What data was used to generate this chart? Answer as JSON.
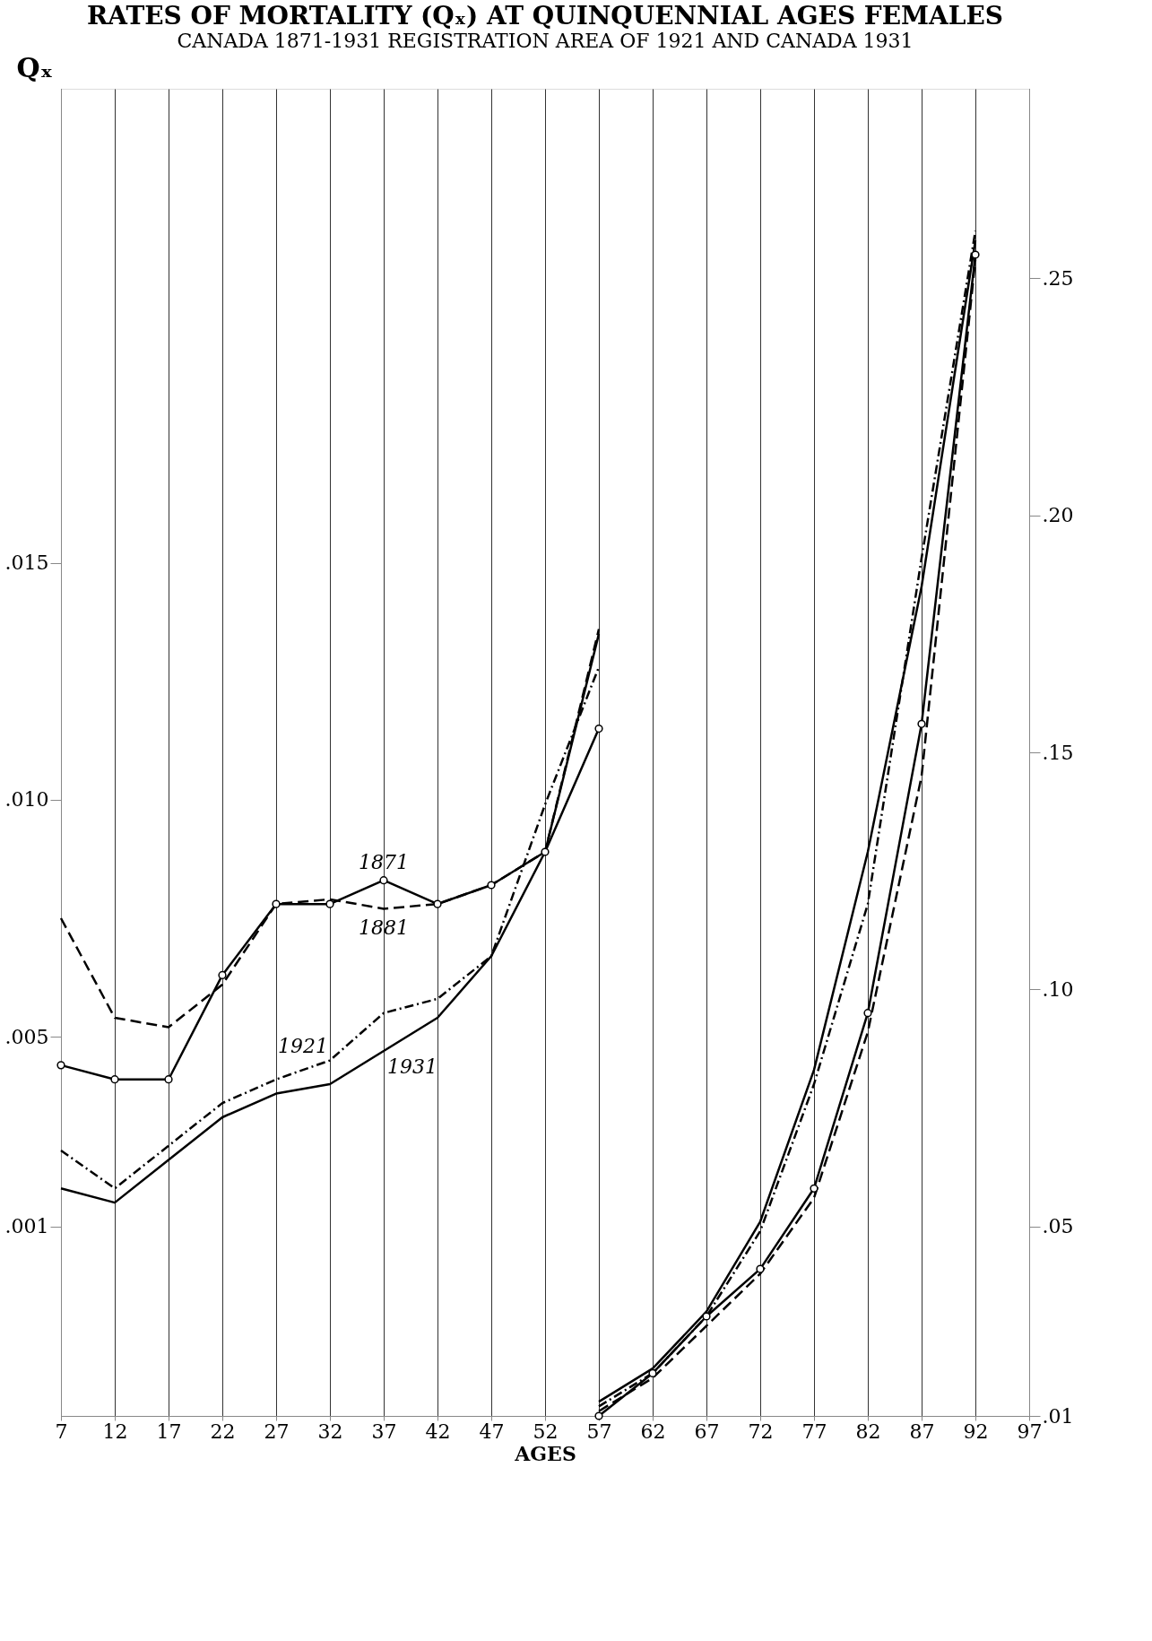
{
  "chart_data": {
    "type": "line",
    "title": "RATES OF MORTALITY (Qₓ) AT QUINQUENNIAL AGES FEMALES",
    "subtitle": "CANADA 1871-1931 REGISTRATION AREA OF 1921 AND CANADA 1931",
    "xlabel": "AGES",
    "ylabel": "Qₓ",
    "xlim": [
      7,
      97
    ],
    "xticks": [
      7,
      12,
      17,
      22,
      27,
      32,
      37,
      42,
      47,
      52,
      57,
      62,
      67,
      72,
      77,
      82,
      87,
      92,
      97
    ],
    "ylim": [
      -0.003,
      0.025
    ],
    "yticks": [
      {
        "value": 0.001,
        "label": ".001"
      },
      {
        "value": 0.005,
        "label": ".005"
      },
      {
        "value": 0.01,
        "label": ".010"
      },
      {
        "value": 0.015,
        "label": ".015"
      }
    ],
    "y2lim": [
      0.01,
      0.29
    ],
    "y2ticks": [
      {
        "value": 0.01,
        "label": ".01"
      },
      {
        "value": 0.05,
        "label": ".05"
      },
      {
        "value": 0.1,
        "label": ".10"
      },
      {
        "value": 0.15,
        "label": ".15"
      },
      {
        "value": 0.2,
        "label": ".20"
      },
      {
        "value": 0.25,
        "label": ".25"
      }
    ],
    "grid": "x",
    "series": [
      {
        "color": "#000000",
        "line_style": "solid",
        "marker": "circle",
        "x": [
          7,
          12,
          17,
          22,
          27,
          32,
          37,
          42,
          47,
          52,
          57
        ],
        "values": [
          0.0044,
          0.0041,
          0.0041,
          0.0063,
          0.0078,
          0.0078,
          0.0083,
          0.0078,
          0.0082,
          0.0089,
          0.0115
        ]
      },
      {
        "color": "#000000",
        "line_style": "dashed",
        "marker": "none",
        "x": [
          7,
          12,
          17,
          22,
          27,
          32,
          37,
          42,
          47,
          52,
          57
        ],
        "values": [
          0.0075,
          0.0054,
          0.0052,
          0.0061,
          0.0078,
          0.0079,
          0.0077,
          0.0078,
          0.0082,
          0.0089,
          0.0136
        ]
      },
      {
        "color": "#000000",
        "line_style": "dotted",
        "marker": "none",
        "x": [
          7,
          12,
          17,
          22,
          27,
          32,
          37,
          42,
          47,
          52,
          57
        ],
        "values": [
          0.0026,
          0.0018,
          0.0027,
          0.0036,
          0.0041,
          0.0045,
          0.0055,
          0.0058,
          0.0067,
          0.0099,
          0.0128
        ]
      },
      {
        "color": "#000000",
        "line_style": "solid",
        "marker": "none",
        "x": [
          7,
          12,
          17,
          22,
          27,
          32,
          37,
          42,
          47,
          52,
          57
        ],
        "values": [
          0.0018,
          0.0015,
          0.0024,
          0.0033,
          0.0038,
          0.004,
          0.0047,
          0.0054,
          0.0067,
          0.0089,
          0.0135
        ]
      },
      {
        "color": "#000000",
        "line_style": "solid",
        "marker": "circle",
        "axis": "y2",
        "x": [
          57,
          62,
          67,
          72,
          77,
          82,
          87,
          92
        ],
        "values": [
          0.01,
          0.019,
          0.031,
          0.041,
          0.058,
          0.095,
          0.156,
          0.255
        ]
      },
      {
        "color": "#000000",
        "line_style": "dashed",
        "marker": "none",
        "axis": "y2",
        "x": [
          57,
          62,
          67,
          72,
          77,
          82,
          87,
          92
        ],
        "values": [
          0.011,
          0.018,
          0.029,
          0.04,
          0.056,
          0.091,
          0.145,
          0.254
        ]
      },
      {
        "color": "#000000",
        "line_style": "dotted",
        "marker": "none",
        "axis": "y2",
        "x": [
          57,
          62,
          67,
          72,
          77,
          82,
          87,
          92
        ],
        "values": [
          0.012,
          0.019,
          0.031,
          0.049,
          0.08,
          0.118,
          0.191,
          0.26
        ]
      },
      {
        "color": "#000000",
        "line_style": "solid",
        "marker": "none",
        "axis": "y2",
        "x": [
          57,
          62,
          67,
          72,
          77,
          82,
          87,
          92
        ],
        "values": [
          0.013,
          0.02,
          0.032,
          0.051,
          0.083,
          0.129,
          0.185,
          0.258
        ]
      }
    ],
    "annotations": [
      "1871",
      "1881",
      "1921",
      "1931"
    ]
  }
}
